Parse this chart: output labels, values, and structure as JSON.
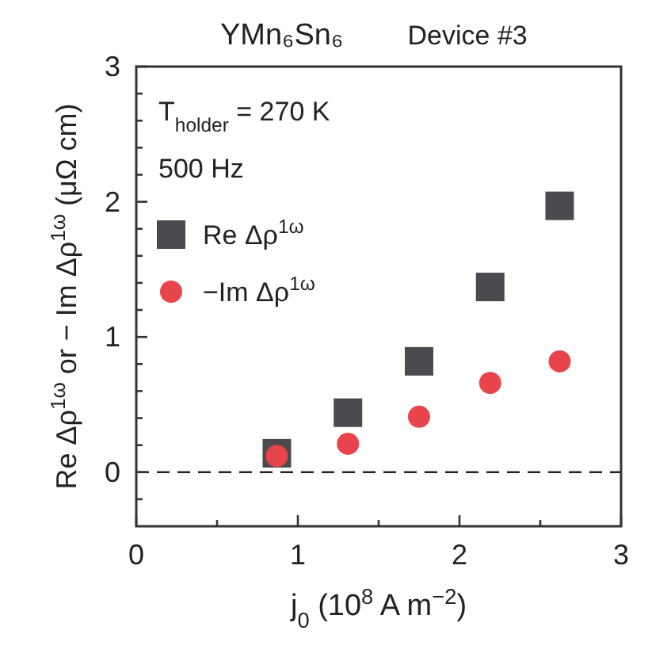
{
  "chart_data": {
    "type": "scatter",
    "title": "YMn₆Sn₆",
    "subtitle": "Device #3",
    "xlabel": "j$_{0}$ (10$^{8}$ A m$^{−2}$)",
    "ylabel": "Re Δρ$^{1ω}$ or − Im Δρ$^{1ω}$ (μΩ cm)",
    "annotations": [
      "T$_{holder}$ = 270 K",
      "500 Hz"
    ],
    "xlim": [
      0,
      3
    ],
    "xticks": [
      0,
      {
        "value": 0.5,
        "label": null
      },
      1,
      {
        "value": 1.5,
        "label": null
      },
      2,
      {
        "value": 2.5,
        "label": null
      },
      3
    ],
    "ylim": [
      -0.4,
      3
    ],
    "yticks": [
      {
        "value": -0.2,
        "label": null
      },
      0,
      {
        "value": 0.2,
        "label": null
      },
      {
        "value": 0.4,
        "label": null
      },
      {
        "value": 0.6,
        "label": null
      },
      {
        "value": 0.8,
        "label": null
      },
      1,
      {
        "value": 1.2,
        "label": null
      },
      {
        "value": 1.4,
        "label": null
      },
      {
        "value": 1.6,
        "label": null
      },
      {
        "value": 1.8,
        "label": null
      },
      2,
      {
        "value": 2.2,
        "label": null
      },
      {
        "value": 2.4,
        "label": null
      },
      {
        "value": 2.6,
        "label": null
      },
      {
        "value": 2.8,
        "label": null
      },
      3
    ],
    "grid": false,
    "legend": "top left",
    "ref_lines": [
      {
        "axis": "y",
        "value": 0,
        "line_style": "dashed",
        "color": "#222222"
      }
    ],
    "series": [
      {
        "name": "Re Δρ$^{1ω}$",
        "color": "#4a4a4f",
        "marker": "square",
        "x": [
          0.87,
          1.31,
          1.75,
          2.19,
          2.62
        ],
        "values": [
          0.14,
          0.44,
          0.82,
          1.37,
          1.97
        ]
      },
      {
        "name": "−Im Δρ$^{1ω}$",
        "color": "#e8444c",
        "marker": "circle",
        "x": [
          0.87,
          1.31,
          1.75,
          2.19,
          2.62
        ],
        "values": [
          0.12,
          0.21,
          0.41,
          0.66,
          0.82
        ]
      }
    ]
  }
}
